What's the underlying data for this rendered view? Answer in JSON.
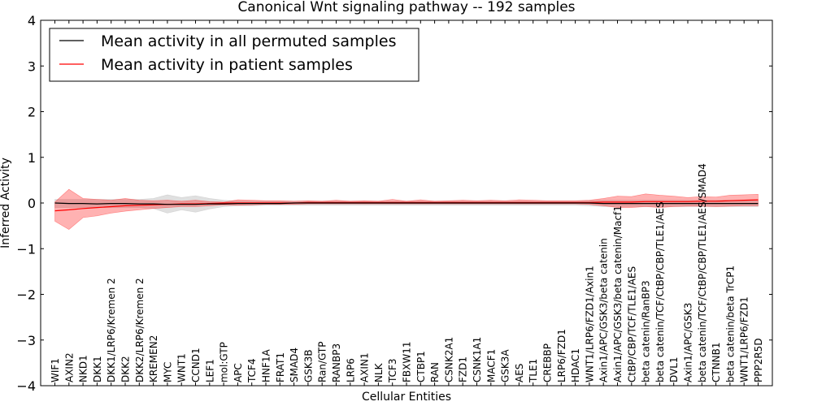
{
  "chart_data": {
    "type": "line",
    "title": "Canonical Wnt signaling pathway -- 192 samples",
    "xlabel": "Cellular Entities",
    "ylabel": "Inferred Activity",
    "ylim": [
      -4,
      4
    ],
    "yticks": [
      4,
      3,
      2,
      1,
      0,
      -1,
      -2,
      -3,
      -4
    ],
    "ytick_labels": [
      "4",
      "3",
      "2",
      "1",
      "0",
      "−1",
      "−2",
      "−3",
      "−4"
    ],
    "grid": false,
    "legend_position": "top-left",
    "categories": [
      "WIF1",
      "AXIN2",
      "NKD1",
      "DKK1",
      "DKK1/LRP6/Kremen 2",
      "DKK2",
      "DKK2/LRP6/Kremen 2",
      "KREMEN2",
      "MYC",
      "WNT1",
      "CCND1",
      "LEF1",
      "mol:GTP",
      "APC",
      "TCF4",
      "HNF1A",
      "FRAT1",
      "SMAD4",
      "GSK3B",
      "Ran/GTP",
      "RANBP3",
      "LRP6",
      "AXIN1",
      "NLK",
      "TCF3",
      "FBXW11",
      "CTBP1",
      "RAN",
      "CSNK2A1",
      "FZD1",
      "CSNK1A1",
      "MACF1",
      "GSK3A",
      "AES",
      "TLE1",
      "CREBBP",
      "LRP6/FZD1",
      "HDAC1",
      "WNT1/LRP6/FZD1/Axin1",
      "Axin1/APC/GSK3/beta catenin",
      "Axin1/APC/GSK3/beta catenin/Macf1",
      "CtBP/CBP/TCF/TLE1/AES",
      "beta catenin/RanBP3",
      "beta catenin/TCF/CtBP/CBP/TLE1/AES",
      "DVL1",
      "Axin1/APC/GSK3",
      "beta catenin/TCF/CtBP/CBP/TLE1/AES/SMAD4",
      "CTNNB1",
      "beta catenin/beta TrCP1",
      "WNT1/LRP6/FZD1",
      "PPP2R5D"
    ],
    "series": [
      {
        "name": "Mean activity in all permuted samples",
        "color": "#000000",
        "band_color": "#bbbbbb",
        "values": [
          0.0,
          -0.01,
          -0.01,
          -0.02,
          -0.01,
          -0.01,
          -0.02,
          -0.02,
          -0.03,
          -0.03,
          -0.03,
          -0.02,
          -0.02,
          -0.01,
          -0.01,
          -0.01,
          -0.01,
          0.0,
          0.0,
          0.0,
          0.0,
          0.0,
          0.0,
          0.0,
          0.0,
          0.0,
          0.0,
          0.0,
          0.0,
          0.0,
          0.0,
          0.0,
          0.0,
          0.0,
          0.0,
          0.0,
          0.0,
          0.0,
          0.0,
          -0.01,
          -0.01,
          -0.01,
          -0.01,
          -0.01,
          -0.01,
          -0.01,
          -0.01,
          -0.01,
          -0.01,
          -0.01,
          -0.01
        ],
        "lower": [
          -0.1,
          -0.1,
          -0.1,
          -0.1,
          -0.1,
          -0.1,
          -0.1,
          -0.12,
          -0.22,
          -0.15,
          -0.2,
          -0.13,
          -0.08,
          -0.06,
          -0.06,
          -0.05,
          -0.05,
          -0.05,
          -0.05,
          -0.05,
          -0.05,
          -0.05,
          -0.05,
          -0.05,
          -0.05,
          -0.05,
          -0.05,
          -0.05,
          -0.05,
          -0.05,
          -0.05,
          -0.05,
          -0.05,
          -0.05,
          -0.05,
          -0.05,
          -0.05,
          -0.05,
          -0.06,
          -0.08,
          -0.08,
          -0.08,
          -0.08,
          -0.08,
          -0.08,
          -0.08,
          -0.08,
          -0.08,
          -0.08,
          -0.08,
          -0.08
        ],
        "upper": [
          0.08,
          0.08,
          0.08,
          0.08,
          0.08,
          0.08,
          0.08,
          0.1,
          0.18,
          0.12,
          0.16,
          0.1,
          0.06,
          0.04,
          0.04,
          0.04,
          0.04,
          0.04,
          0.04,
          0.04,
          0.04,
          0.04,
          0.04,
          0.04,
          0.04,
          0.04,
          0.04,
          0.04,
          0.04,
          0.04,
          0.04,
          0.04,
          0.04,
          0.04,
          0.04,
          0.04,
          0.04,
          0.04,
          0.05,
          0.06,
          0.06,
          0.06,
          0.06,
          0.06,
          0.06,
          0.06,
          0.06,
          0.06,
          0.06,
          0.06,
          0.06
        ]
      },
      {
        "name": "Mean activity in patient samples",
        "color": "#ff0000",
        "band_color": "#ff0000",
        "values": [
          -0.17,
          -0.15,
          -0.12,
          -0.1,
          -0.08,
          -0.06,
          -0.05,
          -0.04,
          -0.03,
          -0.02,
          -0.02,
          -0.01,
          0.0,
          0.0,
          0.0,
          0.0,
          0.0,
          0.0,
          0.01,
          0.01,
          0.01,
          0.01,
          0.01,
          0.01,
          0.01,
          0.01,
          0.01,
          0.01,
          0.01,
          0.01,
          0.01,
          0.01,
          0.01,
          0.01,
          0.01,
          0.01,
          0.01,
          0.01,
          0.01,
          0.02,
          0.02,
          0.02,
          0.03,
          0.03,
          0.03,
          0.03,
          0.04,
          0.04,
          0.05,
          0.06,
          0.07
        ],
        "lower": [
          -0.4,
          -0.58,
          -0.32,
          -0.28,
          -0.22,
          -0.18,
          -0.15,
          -0.12,
          -0.1,
          -0.08,
          -0.08,
          -0.06,
          -0.04,
          -0.05,
          -0.04,
          -0.03,
          -0.03,
          -0.03,
          -0.02,
          -0.02,
          -0.02,
          -0.02,
          -0.02,
          -0.02,
          -0.02,
          -0.02,
          -0.02,
          -0.02,
          -0.02,
          -0.02,
          -0.02,
          -0.02,
          -0.02,
          -0.02,
          -0.02,
          -0.02,
          -0.02,
          -0.02,
          -0.03,
          -0.06,
          -0.1,
          -0.1,
          -0.08,
          -0.1,
          -0.08,
          -0.07,
          -0.07,
          -0.08,
          -0.07,
          -0.06,
          -0.06
        ],
        "upper": [
          0.02,
          0.3,
          0.1,
          0.08,
          0.06,
          0.1,
          0.06,
          0.05,
          0.06,
          0.04,
          0.06,
          0.03,
          0.02,
          0.07,
          0.06,
          0.05,
          0.05,
          0.04,
          0.05,
          0.04,
          0.06,
          0.04,
          0.05,
          0.04,
          0.08,
          0.04,
          0.07,
          0.04,
          0.05,
          0.06,
          0.05,
          0.06,
          0.05,
          0.07,
          0.06,
          0.05,
          0.05,
          0.05,
          0.06,
          0.1,
          0.15,
          0.14,
          0.2,
          0.17,
          0.15,
          0.12,
          0.14,
          0.13,
          0.17,
          0.18,
          0.19
        ]
      }
    ]
  }
}
